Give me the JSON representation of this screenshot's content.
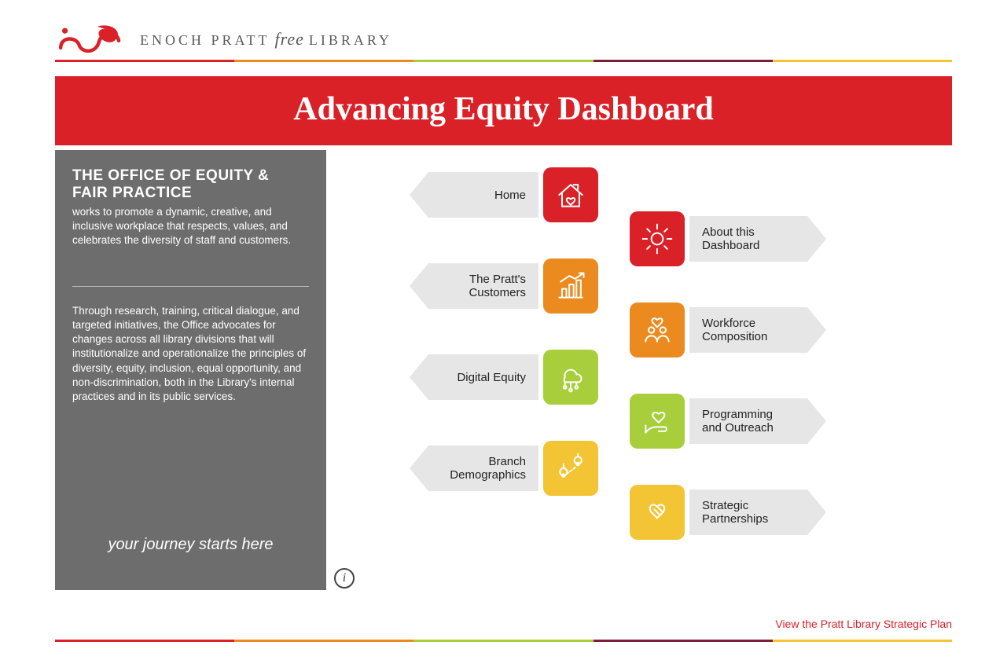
{
  "brand": {
    "name_pre": "ENOCH PRATT",
    "name_free": "free",
    "name_post": "LIBRARY",
    "logo_color": "#da2128"
  },
  "colors": {
    "red": "#da2128",
    "orange": "#ea8a1f",
    "green": "#a8ce3b",
    "maroon": "#7a1e3b",
    "yellow": "#f3c433",
    "sidebar_bg": "#6d6d6d",
    "nav_label_bg": "#e6e6e6",
    "nav_text": "#222222",
    "footer_link": "#da2128",
    "title_bg": "#da2128"
  },
  "title": "Advancing Equity Dashboard",
  "sidebar": {
    "heading": "THE OFFICE OF EQUITY & FAIR PRACTICE",
    "intro": "works to promote a dynamic, creative, and inclusive workplace that respects, values, and celebrates the diversity of staff and customers.",
    "body": "Through research, training, critical dialogue, and targeted initiatives, the Office advocates for changes across all library divisions that will institutionalize and operationalize the principles of diversity, equity, inclusion, equal opportunity, and non-discrimination, both in the Library's internal practices and in its public services.",
    "tagline": "your journey starts here"
  },
  "nav_left": [
    {
      "label": "Home",
      "icon": "home",
      "color": "#da2128"
    },
    {
      "label": "The Pratt's Customers",
      "icon": "chart",
      "color": "#ea8a1f"
    },
    {
      "label": "Digital Equity",
      "icon": "cloud-network",
      "color": "#a8ce3b"
    },
    {
      "label": "Branch Demographics",
      "icon": "pins",
      "color": "#f3c433"
    }
  ],
  "nav_right": [
    {
      "label": "About this Dashboard",
      "icon": "sun",
      "color": "#da2128"
    },
    {
      "label": "Workforce Composition",
      "icon": "people",
      "color": "#ea8a1f"
    },
    {
      "label": "Programming and Outreach",
      "icon": "hand-heart",
      "color": "#a8ce3b"
    },
    {
      "label": "Strategic Partnerships",
      "icon": "handshake",
      "color": "#f3c433"
    }
  ],
  "footer_link_label": "View the Pratt Library Strategic Plan",
  "color_strip": [
    "#da2128",
    "#ea8a1f",
    "#a8ce3b",
    "#7a1e3b",
    "#f3c433"
  ]
}
